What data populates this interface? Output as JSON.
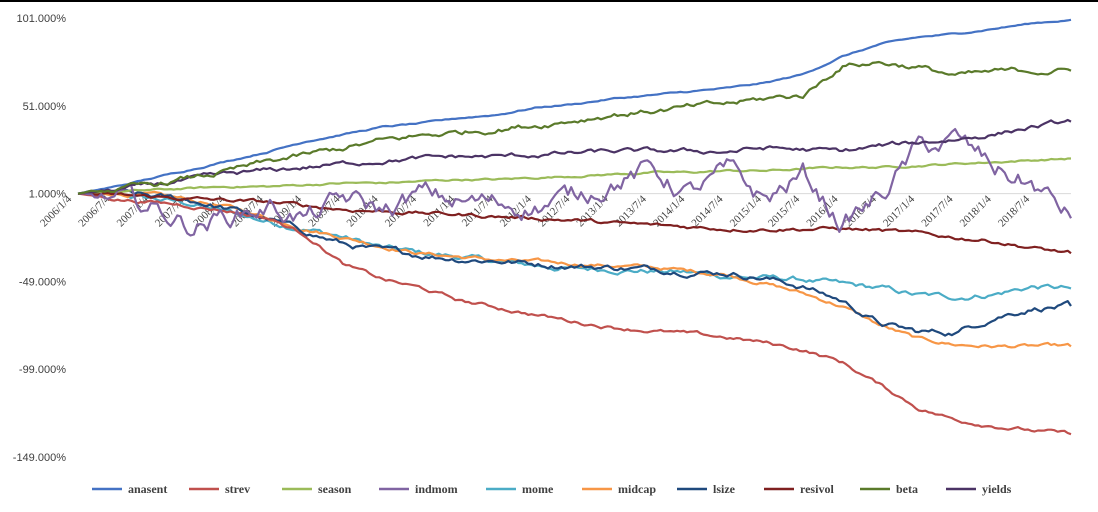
{
  "chart_data": {
    "type": "line",
    "title": "",
    "xlabel": "",
    "ylabel": "",
    "ylim": [
      -149,
      101
    ],
    "yticks": [
      101,
      51,
      1,
      -49,
      -99,
      -149
    ],
    "ytick_labels": [
      "101.000%",
      "51.000%",
      "1.000%",
      "-49.000%",
      "-99.000%",
      "-149.000%"
    ],
    "xtick_labels": [
      "2006/1/4",
      "2006/7/4",
      "2007/1/4",
      "2007/7/4",
      "2008/1/4",
      "2008/7/4",
      "2009/1/4",
      "2009/7/4",
      "2010/1/4",
      "2010/7/4",
      "2011/1/4",
      "2011/7/4",
      "2012/1/4",
      "2012/7/4",
      "2013/1/4",
      "2013/7/4",
      "2014/1/4",
      "2014/7/4",
      "2015/1/4",
      "2015/7/4",
      "2016/1/4",
      "2016/7/4",
      "2017/1/4",
      "2017/7/4",
      "2018/1/4",
      "2018/7/4"
    ],
    "grid": false,
    "legend_position": "bottom",
    "x": [
      "2006/1/4",
      "2006/7/4",
      "2007/1/4",
      "2007/7/4",
      "2008/1/4",
      "2008/7/4",
      "2009/1/4",
      "2009/7/4",
      "2010/1/4",
      "2010/7/4",
      "2011/1/4",
      "2011/7/4",
      "2012/1/4",
      "2012/7/4",
      "2013/1/4",
      "2013/7/4",
      "2014/1/4",
      "2014/7/4",
      "2015/1/4",
      "2015/7/4",
      "2016/1/4",
      "2016/7/4",
      "2017/1/4",
      "2017/7/4",
      "2018/1/4",
      "2018/7/4",
      "2018/12/31"
    ],
    "series": [
      {
        "name": "anasent",
        "color": "#4472C4",
        "values": [
          1,
          5,
          10,
          15,
          20,
          25,
          31,
          35,
          39,
          41,
          44,
          46,
          50,
          52,
          55,
          57,
          59,
          61,
          64,
          69,
          79,
          86,
          90,
          92,
          95,
          98,
          100
        ]
      },
      {
        "name": "strev",
        "color": "#C0504D",
        "values": [
          1,
          -2,
          -4,
          -6,
          -9,
          -13,
          -23,
          -40,
          -48,
          -53,
          -60,
          -64,
          -68,
          -72,
          -75,
          -77,
          -79,
          -81,
          -84,
          -88,
          -95,
          -108,
          -121,
          -128,
          -131,
          -134,
          -136
        ]
      },
      {
        "name": "season",
        "color": "#9BBB59",
        "values": [
          1,
          2,
          3,
          4,
          5,
          5,
          6,
          7,
          7,
          8,
          9,
          9,
          10,
          11,
          12,
          13,
          13,
          14,
          14,
          15,
          16,
          16,
          17,
          18,
          19,
          20,
          21
        ]
      },
      {
        "name": "indmom",
        "color": "#8064A2",
        "values": [
          1,
          -3,
          -8,
          -17,
          -11,
          -6,
          -13,
          -3,
          -9,
          0,
          -4,
          -5,
          -5,
          -1,
          9,
          14,
          1,
          12,
          -3,
          12,
          -16,
          -1,
          26,
          31,
          15,
          6,
          -13
        ]
      },
      {
        "name": "mome",
        "color": "#4BACC6",
        "values": [
          1,
          0,
          -2,
          -5,
          -10,
          -15,
          -19,
          -24,
          -30,
          -33,
          -35,
          -38,
          -40,
          -42,
          -42,
          -43,
          -44,
          -46,
          -47,
          -48,
          -51,
          -53,
          -57,
          -58,
          -56,
          -52,
          -53
        ]
      },
      {
        "name": "midcap",
        "color": "#F79646",
        "values": [
          1,
          1,
          0,
          -3,
          -7,
          -13,
          -19,
          -24,
          -29,
          -33,
          -35,
          -37,
          -38,
          -39,
          -40,
          -41,
          -43,
          -45,
          -50,
          -56,
          -63,
          -74,
          -82,
          -85,
          -86,
          -86,
          -86
        ]
      },
      {
        "name": "lsize",
        "color": "#1F497D",
        "values": [
          1,
          1,
          -1,
          -3,
          -8,
          -14,
          -21,
          -28,
          -32,
          -34,
          -36,
          -37,
          -39,
          -40,
          -41,
          -42,
          -43,
          -44,
          -47,
          -52,
          -60,
          -73,
          -78,
          -78,
          -69,
          -64,
          -63
        ]
      },
      {
        "name": "resivol",
        "color": "#7F2020",
        "values": [
          1,
          0,
          -1,
          -2,
          -3,
          -4,
          -6,
          -8,
          -9,
          -10,
          -11,
          -12,
          -13,
          -14,
          -16,
          -17,
          -18,
          -19,
          -19,
          -19,
          -19,
          -20,
          -22,
          -24,
          -26,
          -30,
          -33
        ]
      },
      {
        "name": "beta",
        "color": "#5A7A2A",
        "values": [
          1,
          3,
          6,
          10,
          14,
          19,
          23,
          27,
          31,
          34,
          36,
          38,
          40,
          43,
          46,
          48,
          50,
          52,
          55,
          57,
          74,
          76,
          73,
          68,
          70,
          71,
          71
        ]
      },
      {
        "name": "yields",
        "color": "#4B3365",
        "values": [
          1,
          3,
          6,
          9,
          12,
          14,
          16,
          18,
          20,
          21,
          22,
          22,
          23,
          24,
          25,
          25,
          25,
          25,
          27,
          26,
          25,
          28,
          30,
          32,
          35,
          39,
          42
        ]
      }
    ]
  }
}
